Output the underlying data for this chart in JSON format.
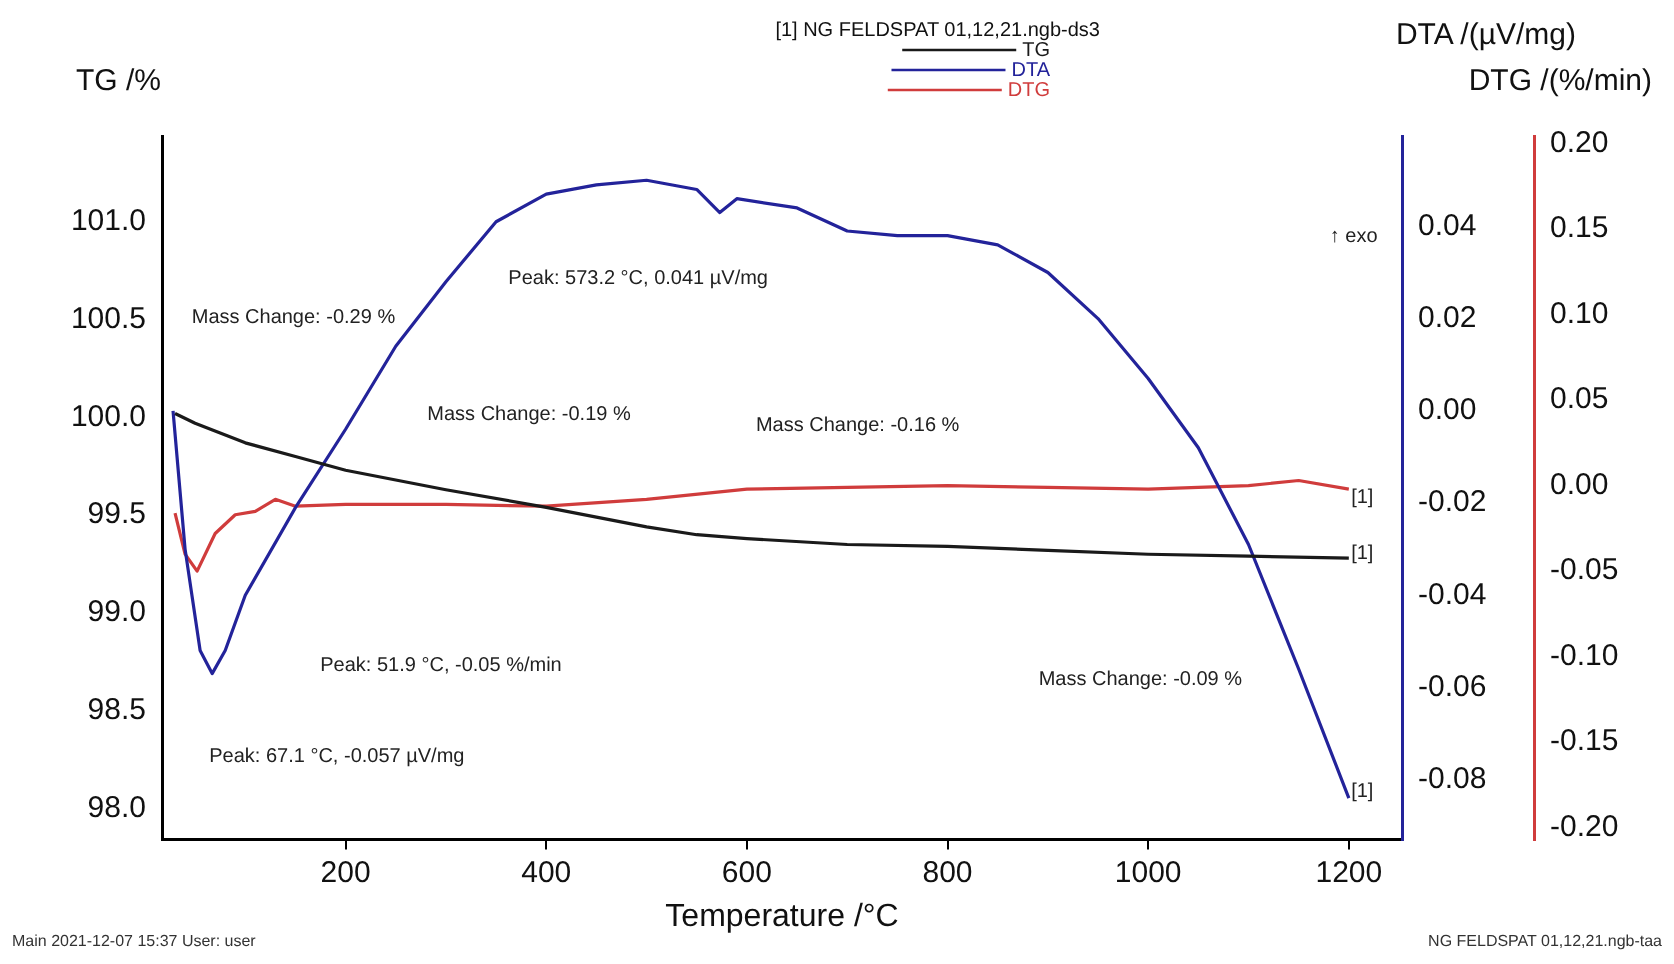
{
  "chart_data": {
    "type": "line",
    "xlabel": "Temperature /°C",
    "ylabel": "TG /%",
    "y2label": "DTA /(µV/mg)",
    "y3label": "DTG /(%/min)",
    "legend_title": "[1] NG FELDSPAT 01,12,21.ngb-ds3",
    "legend": "top",
    "grid": false,
    "marker": "none",
    "line_style": "solid",
    "xlim": [
      17,
      1253
    ],
    "xticks": [
      200,
      400,
      600,
      800,
      1000,
      1200
    ],
    "ylim": [
      97.84,
      101.44
    ],
    "yticks": [
      {
        "value": 98,
        "label": "98.0"
      },
      {
        "value": 98.5,
        "label": "98.5"
      },
      {
        "value": 99,
        "label": "99.0"
      },
      {
        "value": 99.5,
        "label": "99.5"
      },
      {
        "value": 100,
        "label": "100.0"
      },
      {
        "value": 100.5,
        "label": "100.5"
      },
      {
        "value": 101,
        "label": "101.0"
      }
    ],
    "y2lim": [
      -0.093,
      0.0596
    ],
    "y2ticks": [
      {
        "value": -0.08,
        "label": "-0.08"
      },
      {
        "value": -0.06,
        "label": "-0.06"
      },
      {
        "value": -0.04,
        "label": "-0.04"
      },
      {
        "value": -0.02,
        "label": "-0.02"
      },
      {
        "value": 0,
        "label": "0.00"
      },
      {
        "value": 0.02,
        "label": "0.02"
      },
      {
        "value": 0.04,
        "label": "0.04"
      }
    ],
    "y3lim": [
      -0.207,
      0.2045
    ],
    "y3ticks": [
      {
        "value": -0.2,
        "label": "-0.20"
      },
      {
        "value": -0.15,
        "label": "-0.15"
      },
      {
        "value": -0.1,
        "label": "-0.10"
      },
      {
        "value": -0.05,
        "label": "-0.05"
      },
      {
        "value": 0,
        "label": "0.00"
      },
      {
        "value": 0.05,
        "label": "0.05"
      },
      {
        "value": 0.1,
        "label": "0.10"
      },
      {
        "value": 0.15,
        "label": "0.15"
      },
      {
        "value": 0.2,
        "label": "0.20"
      }
    ],
    "series": [
      {
        "name": "TG",
        "color": "#1a1a1a",
        "x": [
          30,
          50,
          75,
          100,
          150,
          200,
          300,
          400,
          450,
          500,
          550,
          600,
          700,
          800,
          900,
          1000,
          1100,
          1200
        ],
        "values": [
          100.02,
          99.97,
          99.92,
          99.87,
          99.8,
          99.73,
          99.63,
          99.54,
          99.49,
          99.44,
          99.4,
          99.38,
          99.35,
          99.34,
          99.32,
          99.3,
          99.29,
          99.28
        ]
      },
      {
        "name": "DTA",
        "color": "#23239a",
        "axis": "y2",
        "x": [
          28,
          40,
          55,
          67,
          80,
          100,
          150,
          200,
          250,
          300,
          350,
          400,
          450,
          500,
          550,
          573,
          590,
          650,
          700,
          750,
          800,
          850,
          900,
          950,
          1000,
          1050,
          1100,
          1150,
          1200
        ],
        "values": [
          0.0,
          -0.03,
          -0.052,
          -0.057,
          -0.052,
          -0.04,
          -0.021,
          -0.004,
          0.014,
          0.028,
          0.041,
          0.047,
          0.049,
          0.05,
          0.048,
          0.043,
          0.046,
          0.044,
          0.039,
          0.038,
          0.038,
          0.036,
          0.03,
          0.02,
          0.007,
          -0.008,
          -0.029,
          -0.056,
          -0.084
        ]
      },
      {
        "name": "DTG",
        "color": "#d03c3c",
        "axis": "y3",
        "x": [
          30,
          40,
          52,
          70,
          90,
          110,
          130,
          150,
          200,
          300,
          400,
          500,
          600,
          700,
          800,
          900,
          1000,
          1100,
          1150,
          1200
        ],
        "values": [
          -0.016,
          -0.04,
          -0.05,
          -0.028,
          -0.017,
          -0.015,
          -0.008,
          -0.012,
          -0.011,
          -0.011,
          -0.012,
          -0.008,
          -0.002,
          -0.001,
          0.0,
          -0.001,
          -0.002,
          0.0,
          0.003,
          -0.002
        ]
      }
    ],
    "annotations": [
      "Mass Change: -0.29 %",
      "Mass Change: -0.19 %",
      "Mass Change: -0.16 %",
      "Mass Change: -0.09 %",
      "Peak: 573.2 °C, 0.041 µV/mg",
      "Peak: 51.9 °C, -0.05 %/min",
      "Peak: 67.1 °C, -0.057 µV/mg",
      "↑ exo",
      "[1]",
      "[1]",
      "[1]",
      "Main   2021-12-07 15:37   User: user",
      "NG FELDSPAT 01,12,21.ngb-taa"
    ]
  }
}
